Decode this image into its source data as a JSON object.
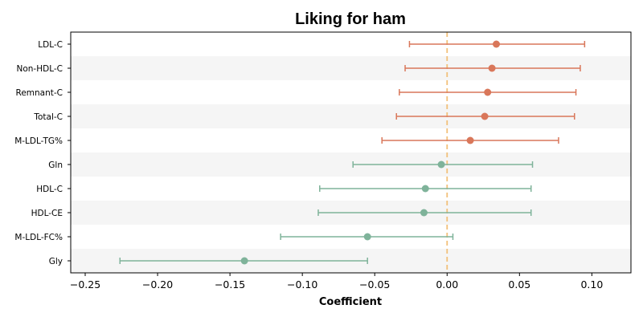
{
  "chart_data": {
    "type": "scatter",
    "title": "Liking for ham",
    "xlabel": "Coefficient",
    "ylabel": "",
    "xlim": [
      -0.26,
      0.127
    ],
    "xticks": [
      -0.25,
      -0.2,
      -0.15,
      -0.1,
      -0.05,
      0.0,
      0.05,
      0.1
    ],
    "xtick_labels": [
      "−0.25",
      "−0.20",
      "−0.15",
      "−0.10",
      "−0.05",
      "0.00",
      "0.05",
      "0.10"
    ],
    "reference_line": 0,
    "grid": false,
    "colors": {
      "positive": "#d9775a",
      "negative": "#7fb39a",
      "reference": "#f2c07a",
      "band": "#f5f5f5"
    },
    "points": [
      {
        "label": "LDL-C",
        "estimate": 0.034,
        "ci_low": -0.026,
        "ci_high": 0.095,
        "group": "positive"
      },
      {
        "label": "Non-HDL-C",
        "estimate": 0.031,
        "ci_low": -0.029,
        "ci_high": 0.092,
        "group": "positive"
      },
      {
        "label": "Remnant-C",
        "estimate": 0.028,
        "ci_low": -0.033,
        "ci_high": 0.089,
        "group": "positive"
      },
      {
        "label": "Total-C",
        "estimate": 0.026,
        "ci_low": -0.035,
        "ci_high": 0.088,
        "group": "positive"
      },
      {
        "label": "M-LDL-TG%",
        "estimate": 0.016,
        "ci_low": -0.045,
        "ci_high": 0.077,
        "group": "positive"
      },
      {
        "label": "Gln",
        "estimate": -0.004,
        "ci_low": -0.065,
        "ci_high": 0.059,
        "group": "negative"
      },
      {
        "label": "HDL-C",
        "estimate": -0.015,
        "ci_low": -0.088,
        "ci_high": 0.058,
        "group": "negative"
      },
      {
        "label": "HDL-CE",
        "estimate": -0.016,
        "ci_low": -0.089,
        "ci_high": 0.058,
        "group": "negative"
      },
      {
        "label": "M-LDL-FC%",
        "estimate": -0.055,
        "ci_low": -0.115,
        "ci_high": 0.004,
        "group": "negative"
      },
      {
        "label": "Gly",
        "estimate": -0.14,
        "ci_low": -0.226,
        "ci_high": -0.055,
        "group": "negative"
      }
    ]
  }
}
